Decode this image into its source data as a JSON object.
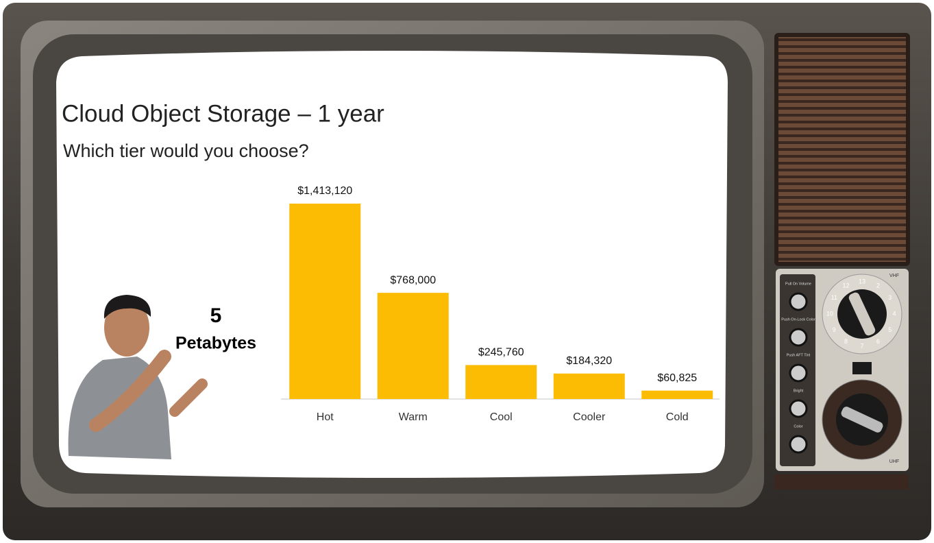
{
  "chart_data": {
    "type": "bar",
    "title": "Cloud Object Storage – 1 year",
    "subtitle": "Which tier would you choose?",
    "annotation": {
      "amount": "5",
      "unit": "Petabytes"
    },
    "categories": [
      "Hot",
      "Warm",
      "Cool",
      "Cooler",
      "Cold"
    ],
    "values": [
      1413120,
      768000,
      245760,
      184320,
      60825
    ],
    "value_labels": [
      "$1,413,120",
      "$768,000",
      "$245,760",
      "$184,320",
      "$60,825"
    ],
    "color": "#fcbc04"
  },
  "tv": {
    "knob_labels": [
      "Pull On Volume",
      "Push On-Lock Color",
      "Push AFT Tint",
      "Bright",
      "Color"
    ],
    "band_labels": [
      "VHF",
      "UHF"
    ],
    "dial_numbers": [
      2,
      3,
      4,
      5,
      6,
      7,
      8,
      9,
      10,
      11,
      12,
      13
    ]
  }
}
